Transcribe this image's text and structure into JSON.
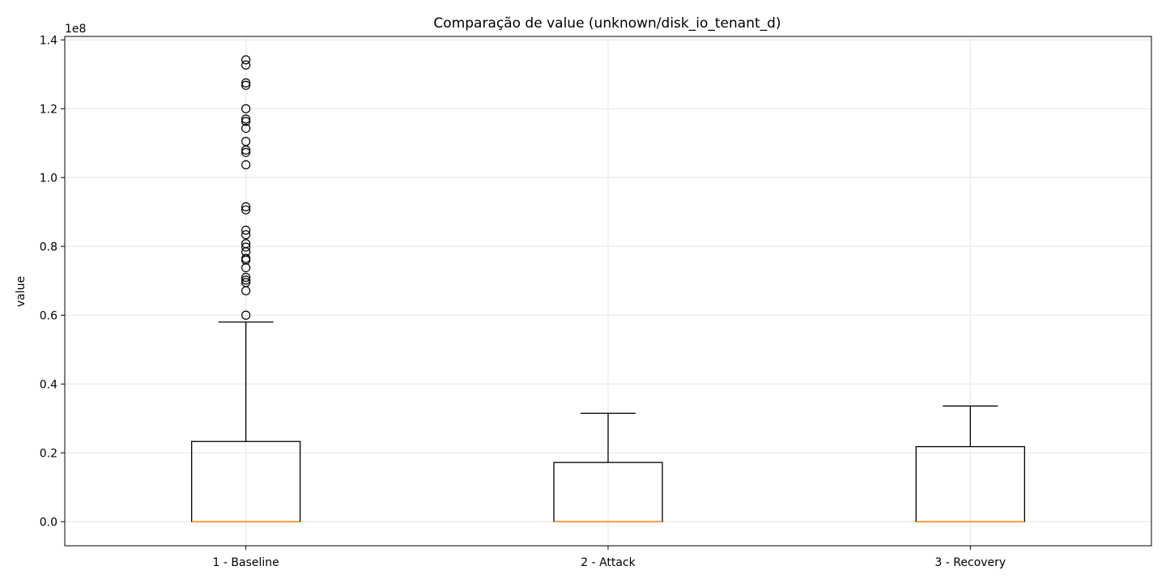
{
  "chart_data": {
    "type": "box",
    "title": "Comparação de value (unknown/disk_io_tenant_d)",
    "xlabel": "",
    "ylabel": "value",
    "y_scale_label": "1e8",
    "y_unit_multiplier": 100000000,
    "ylim": [
      -0.07,
      1.41
    ],
    "yticks": [
      0.0,
      0.2,
      0.4,
      0.6,
      0.8,
      1.0,
      1.2,
      1.4
    ],
    "ytick_labels": [
      "0.0",
      "0.2",
      "0.4",
      "0.6",
      "0.8",
      "1.0",
      "1.2",
      "1.4"
    ],
    "grid": true,
    "categories": [
      "1 - Baseline",
      "2 - Attack",
      "3 - Recovery"
    ],
    "boxes": [
      {
        "label": "1 - Baseline",
        "whisker_low": 0.0,
        "q1": 0.0,
        "median": 0.0,
        "q3": 0.233,
        "whisker_high": 0.58,
        "outliers": [
          1.342,
          1.327,
          1.275,
          1.268,
          1.2,
          1.17,
          1.163,
          1.143,
          1.105,
          1.08,
          1.073,
          1.037,
          0.915,
          0.906,
          0.847,
          0.834,
          0.808,
          0.798,
          0.784,
          0.765,
          0.76,
          0.738,
          0.71,
          0.702,
          0.695,
          0.671,
          0.6
        ]
      },
      {
        "label": "2 - Attack",
        "whisker_low": 0.0,
        "q1": 0.0,
        "median": 0.0,
        "q3": 0.172,
        "whisker_high": 0.315,
        "outliers": []
      },
      {
        "label": "3 - Recovery",
        "whisker_low": 0.0,
        "q1": 0.0,
        "median": 0.0,
        "q3": 0.218,
        "whisker_high": 0.336,
        "outliers": []
      }
    ],
    "colors": {
      "box": "#000000",
      "median": "#ff7f0e",
      "grid": "#e6e6e6",
      "background": "#ffffff"
    }
  }
}
